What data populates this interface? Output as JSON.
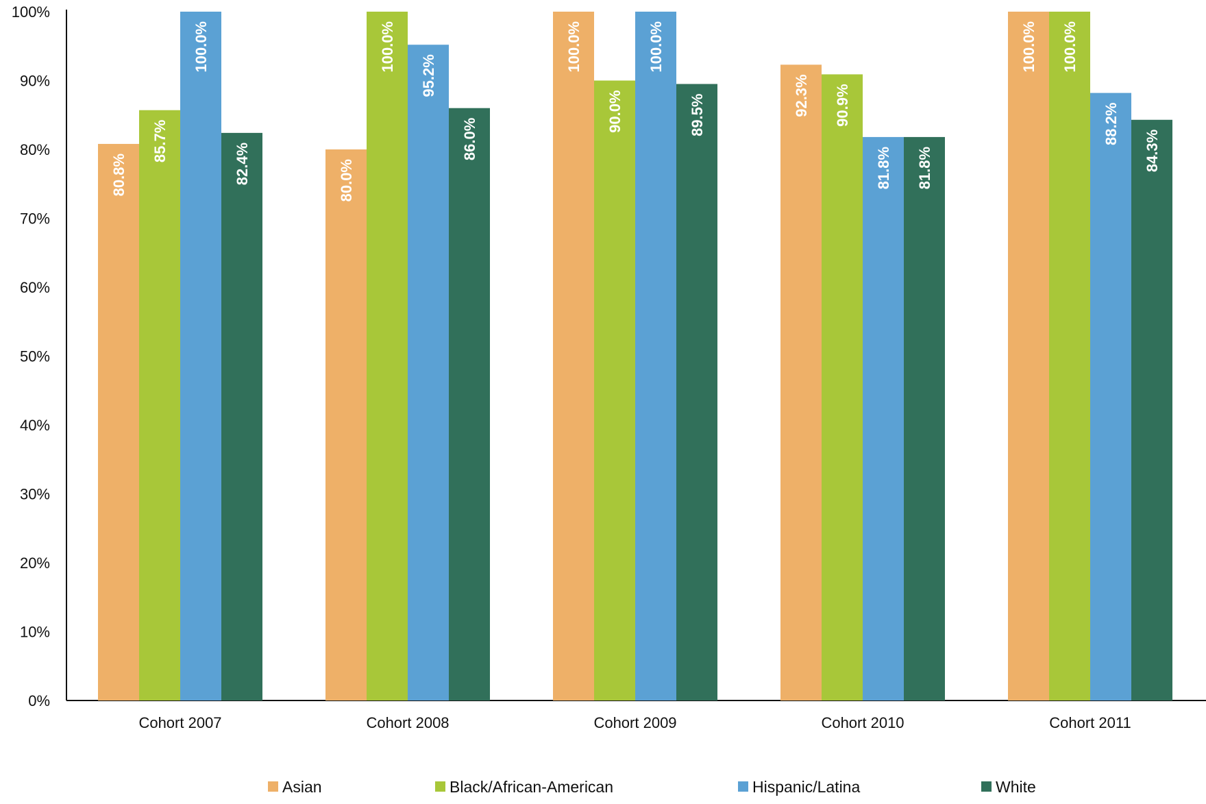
{
  "chart_data": {
    "type": "bar",
    "title": "",
    "xlabel": "",
    "ylabel": "",
    "ylim": [
      0,
      100
    ],
    "yticks": [
      0,
      10,
      20,
      30,
      40,
      50,
      60,
      70,
      80,
      90,
      100
    ],
    "ytick_labels": [
      "0%",
      "10%",
      "20%",
      "30%",
      "40%",
      "50%",
      "60%",
      "70%",
      "80%",
      "90%",
      "100%"
    ],
    "grid": false,
    "legend_position": "bottom",
    "categories": [
      "Cohort 2007",
      "Cohort 2008",
      "Cohort 2009",
      "Cohort 2010",
      "Cohort 2011"
    ],
    "series": [
      {
        "name": "Asian",
        "color": "#EEB068",
        "values": [
          80.8,
          80.0,
          100.0,
          92.3,
          100.0
        ],
        "labels": [
          "80.8%",
          "80.0%",
          "100.0%",
          "92.3%",
          "100.0%"
        ]
      },
      {
        "name": "Black/African-American",
        "color": "#A8C739",
        "values": [
          85.7,
          100.0,
          90.0,
          90.9,
          100.0
        ],
        "labels": [
          "85.7%",
          "100.0%",
          "90.0%",
          "90.9%",
          "100.0%"
        ]
      },
      {
        "name": "Hispanic/Latina",
        "color": "#5BA1D4",
        "values": [
          100.0,
          95.2,
          100.0,
          81.8,
          88.2
        ],
        "labels": [
          "100.0%",
          "95.2%",
          "100.0%",
          "81.8%",
          "88.2%"
        ]
      },
      {
        "name": "White",
        "color": "#31705A",
        "values": [
          82.4,
          86.0,
          89.5,
          81.8,
          84.3
        ],
        "labels": [
          "82.4%",
          "86.0%",
          "89.5%",
          "81.8%",
          "84.3%"
        ]
      }
    ]
  }
}
